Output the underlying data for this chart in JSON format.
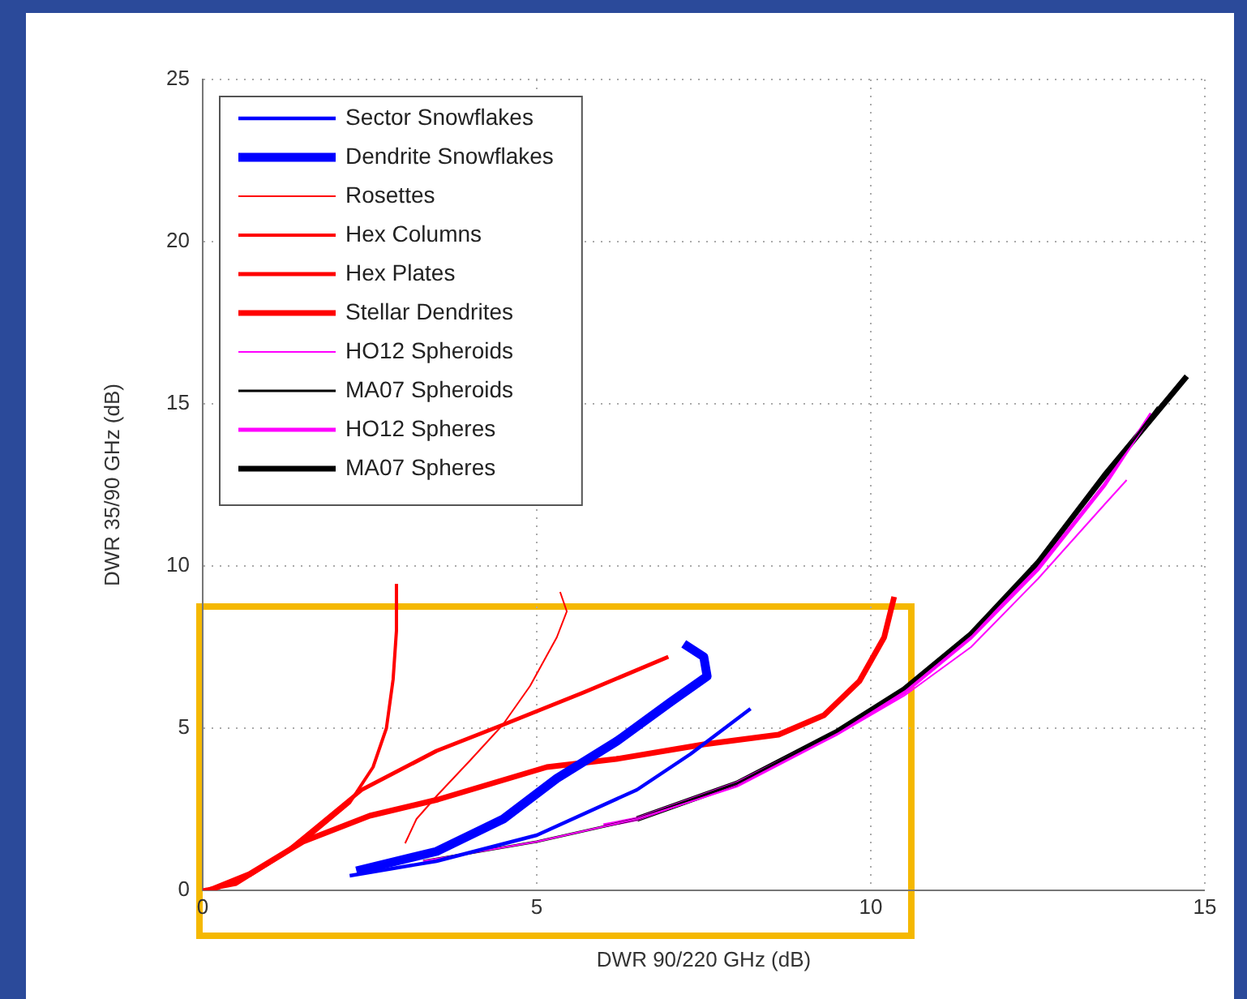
{
  "chart_data": {
    "type": "line",
    "xlabel": "DWR 90/220 GHz (dB)",
    "ylabel": "DWR 35/90 GHz (dB)",
    "xlim": [
      0,
      15
    ],
    "xticks": [
      0,
      5,
      10,
      15
    ],
    "ylim": [
      0,
      25
    ],
    "yticks": [
      0,
      5,
      10,
      15,
      20,
      25
    ],
    "grid": true,
    "legend": "top left",
    "marker": "none",
    "line_style": "solid",
    "series": [
      {
        "name": "Sector Snowflakes",
        "color": "#0000ff",
        "x": [
          2.2,
          3.5,
          5.0,
          6.5,
          7.3,
          8.2
        ],
        "values": [
          0.45,
          0.9,
          1.7,
          3.1,
          4.2,
          5.6
        ]
      },
      {
        "name": "Dendrite Snowflakes",
        "color": "#0000ff",
        "x": [
          2.3,
          3.5,
          4.5,
          5.3,
          6.2,
          7.0,
          7.55,
          7.5,
          7.2
        ],
        "values": [
          0.6,
          1.2,
          2.2,
          3.45,
          4.6,
          5.8,
          6.6,
          7.2,
          7.6
        ]
      },
      {
        "name": "Rosettes",
        "color": "#ff0000",
        "x": [
          3.03,
          3.2,
          3.52,
          4.0,
          4.49,
          4.9,
          5.3,
          5.45,
          5.35
        ],
        "values": [
          1.45,
          2.2,
          2.95,
          4.0,
          5.1,
          6.3,
          7.8,
          8.6,
          9.2
        ]
      },
      {
        "name": "Hex Columns",
        "color": "#ff0000",
        "x": [
          0.7,
          1.5,
          2.2,
          2.55,
          2.75,
          2.85,
          2.9,
          2.9
        ],
        "values": [
          0.45,
          1.5,
          2.7,
          3.8,
          5.0,
          6.5,
          8.0,
          9.45
        ]
      },
      {
        "name": "Hex Plates",
        "color": "#ff0000",
        "x": [
          0.0,
          0.5,
          1.2,
          2.38,
          3.5,
          4.49,
          5.7,
          6.97
        ],
        "values": [
          0.0,
          0.2,
          1.1,
          3.1,
          4.3,
          5.1,
          6.1,
          7.2
        ]
      },
      {
        "name": "Stellar Dendrites",
        "color": "#ff0000",
        "x": [
          0.1,
          0.7,
          1.5,
          2.5,
          3.52,
          5.15,
          6.19,
          7.5,
          8.62,
          9.3,
          9.83,
          10.2,
          10.35
        ],
        "values": [
          0.0,
          0.5,
          1.5,
          2.3,
          2.8,
          3.8,
          4.05,
          4.5,
          4.8,
          5.4,
          6.45,
          7.8,
          9.05
        ]
      },
      {
        "name": "HO12 Spheroids",
        "color": "#ff00ff",
        "x": [
          3.3,
          5.0,
          6.5,
          8.0,
          9.5,
          10.5,
          11.5,
          12.5,
          13.5,
          13.83
        ],
        "values": [
          0.9,
          1.5,
          2.2,
          3.2,
          4.8,
          6.0,
          7.5,
          9.6,
          11.9,
          12.65
        ]
      },
      {
        "name": "MA07 Spheroids",
        "color": "#000000",
        "x": [
          3.3,
          5.0,
          6.5,
          8.0,
          9.5,
          10.5,
          11.5,
          12.5,
          13.5,
          14.3
        ],
        "values": [
          0.9,
          1.5,
          2.2,
          3.3,
          4.9,
          6.2,
          7.9,
          10.1,
          12.7,
          14.9
        ]
      },
      {
        "name": "HO12 Spheres",
        "color": "#ff00ff",
        "x": [
          6.0,
          6.5,
          8.0,
          9.5,
          10.5,
          11.5,
          12.5,
          13.5,
          14.2
        ],
        "values": [
          2.0,
          2.2,
          3.3,
          4.85,
          6.1,
          7.8,
          9.9,
          12.5,
          14.7
        ]
      },
      {
        "name": "MA07 Spheres",
        "color": "#000000",
        "x": [
          6.5,
          8.0,
          9.5,
          10.5,
          11.5,
          12.5,
          13.5,
          14.73
        ],
        "values": [
          2.2,
          3.3,
          4.9,
          6.2,
          7.9,
          10.1,
          12.8,
          15.85
        ]
      }
    ]
  }
}
